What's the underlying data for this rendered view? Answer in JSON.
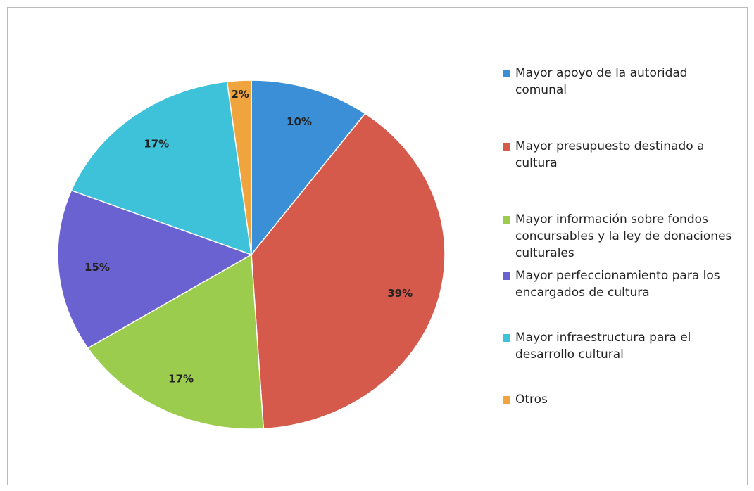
{
  "chart_data": {
    "type": "pie",
    "categories": [
      "Mayor apoyo de la autoridad comunal",
      "Mayor presupuesto destinado a cultura",
      "Mayor información sobre fondos concursables y la ley de donaciones culturales",
      "Mayor perfeccionamiento para los encargados de cultura",
      "Mayor infraestructura para el desarrollo cultural",
      "Otros"
    ],
    "values": [
      10,
      39,
      17,
      15,
      17,
      2
    ],
    "value_labels": [
      "10%",
      "39%",
      "17%",
      "15%",
      "17%",
      "2%"
    ],
    "colors": [
      "#3a8fd6",
      "#d65a4c",
      "#9ccc4e",
      "#6a62d0",
      "#3ec2da",
      "#f0a43e"
    ],
    "legend": "right"
  }
}
